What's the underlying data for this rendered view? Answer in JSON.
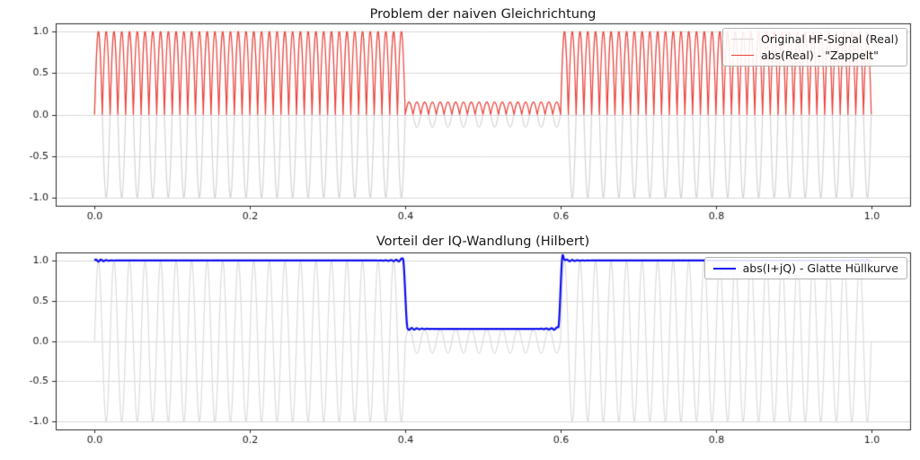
{
  "figure": {
    "background": "#ffffff",
    "text_color": "#1a1a1a",
    "frame_color": "#2b2b2b"
  },
  "chart_data": [
    {
      "type": "line",
      "title": "Problem der naiven Gleichrichtung",
      "xlim": [
        -0.05,
        1.05
      ],
      "ylim": [
        -1.1,
        1.1
      ],
      "xticks": [
        0.0,
        0.2,
        0.4,
        0.6,
        0.8,
        1.0
      ],
      "xtick_labels": [
        "0.0",
        "0.2",
        "0.4",
        "0.6",
        "0.8",
        "1.0"
      ],
      "yticks": [
        -1.0,
        -0.5,
        0.0,
        0.5,
        1.0
      ],
      "ytick_labels": [
        "-1.0",
        "-0.5",
        "0.0",
        "0.5",
        "1.0"
      ],
      "grid": true,
      "grid_color": "#d9d9d9",
      "legend_position": "upper right",
      "signal": {
        "carrier_cycles": 50,
        "envelope_segments": [
          {
            "from": 0.0,
            "to": 0.4,
            "amplitude": 1.0
          },
          {
            "from": 0.4,
            "to": 0.6,
            "amplitude": 0.15
          },
          {
            "from": 0.6,
            "to": 1.0,
            "amplitude": 1.0
          }
        ]
      },
      "series": [
        {
          "name": "Original HF-Signal (Real)",
          "kind": "am_carrier",
          "color": "#d4d4d4",
          "linewidth": 1.2,
          "in_legend": true
        },
        {
          "name": "abs(Real) - \"Zappelt\"",
          "kind": "rectified",
          "color": "#ef4038",
          "linewidth": 1.2,
          "in_legend": true
        }
      ]
    },
    {
      "type": "line",
      "title": "Vorteil der IQ-Wandlung (Hilbert)",
      "xlim": [
        -0.05,
        1.05
      ],
      "ylim": [
        -1.1,
        1.1
      ],
      "xticks": [
        0.0,
        0.2,
        0.4,
        0.6,
        0.8,
        1.0
      ],
      "xtick_labels": [
        "0.0",
        "0.2",
        "0.4",
        "0.6",
        "0.8",
        "1.0"
      ],
      "yticks": [
        -1.0,
        -0.5,
        0.0,
        0.5,
        1.0
      ],
      "ytick_labels": [
        "-1.0",
        "-0.5",
        "0.0",
        "0.5",
        "1.0"
      ],
      "grid": true,
      "grid_color": "#d9d9d9",
      "legend_position": "upper right",
      "signal": {
        "carrier_cycles": 50,
        "envelope_segments": [
          {
            "from": 0.0,
            "to": 0.4,
            "amplitude": 1.0
          },
          {
            "from": 0.4,
            "to": 0.6,
            "amplitude": 0.15
          },
          {
            "from": 0.6,
            "to": 1.0,
            "amplitude": 1.0
          }
        ]
      },
      "series": [
        {
          "name": "HF-Signal (Real)",
          "kind": "am_carrier",
          "color": "#dcdcdc",
          "linewidth": 1.2,
          "in_legend": false
        },
        {
          "name": "abs(I+jQ) - Glatte Hüllkurve",
          "kind": "hilbert_envelope",
          "color": "#0d0df0",
          "linewidth": 2.2,
          "in_legend": true
        }
      ]
    }
  ]
}
